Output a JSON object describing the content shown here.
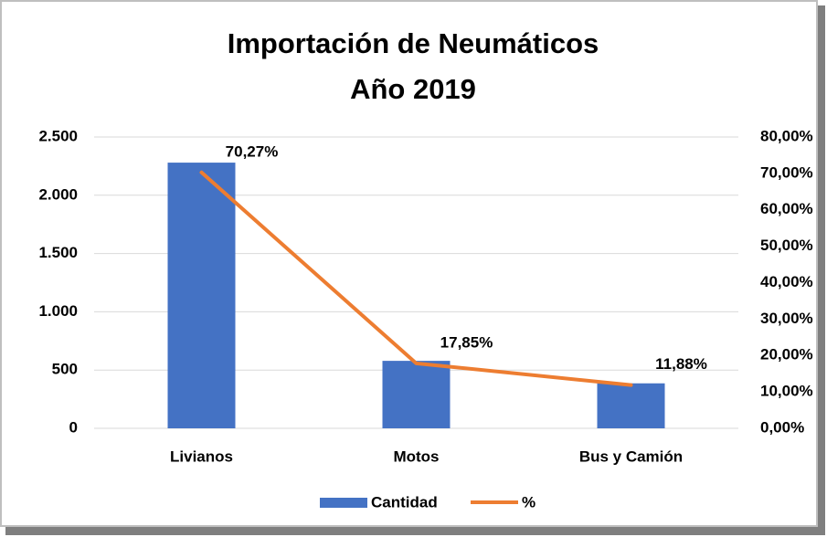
{
  "chart_data": {
    "type": "bar-line",
    "title": [
      "Importación de Neumáticos",
      "Año 2019"
    ],
    "categories": [
      "Livianos",
      "Motos",
      "Bus y Camión"
    ],
    "series": [
      {
        "name": "Cantidad",
        "color": "#4472c4",
        "type": "bar",
        "values": [
          2280,
          579,
          386
        ]
      },
      {
        "name": "%",
        "color": "#ed7d31",
        "type": "line",
        "axis": "y2",
        "values": [
          70.27,
          17.85,
          11.88
        ],
        "value_labels": [
          "70,27%",
          "17,85%",
          "11,88%"
        ]
      }
    ],
    "ylim": [
      0,
      2500
    ],
    "yticks": [
      0,
      500,
      {
        "value": 1000,
        "label": "1.000"
      },
      {
        "value": 1500,
        "label": "1.500"
      },
      {
        "value": 2000,
        "label": "2.000"
      },
      {
        "value": 2500,
        "label": "2.500"
      }
    ],
    "y2lim": [
      0,
      80
    ],
    "y2ticks": [
      {
        "value": 0,
        "label": "0,00%"
      },
      {
        "value": 10,
        "label": "10,00%"
      },
      {
        "value": 20,
        "label": "20,00%"
      },
      {
        "value": 30,
        "label": "30,00%"
      },
      {
        "value": 40,
        "label": "40,00%"
      },
      {
        "value": 50,
        "label": "50,00%"
      },
      {
        "value": 60,
        "label": "60,00%"
      },
      {
        "value": 70,
        "label": "70,00%"
      },
      {
        "value": 80,
        "label": "80,00%"
      }
    ],
    "grid": true,
    "legend": "bottom"
  }
}
